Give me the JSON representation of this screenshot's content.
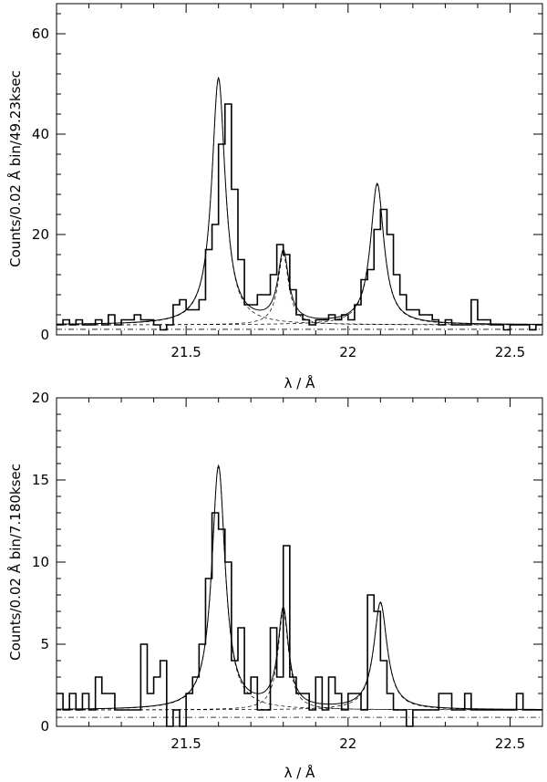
{
  "chart_data": [
    {
      "type": "line",
      "xlabel": "λ / Å",
      "ylabel": "Counts/0.02 Å bin/49.23ksec",
      "xlim": [
        21.1,
        22.6
      ],
      "ylim": [
        0,
        66
      ],
      "xticks": [
        21.5,
        22,
        22.5
      ],
      "xtick_labels": [
        "21.5",
        "22",
        "22.5"
      ],
      "yticks": [
        0,
        20,
        40,
        60
      ],
      "ytick_labels": [
        "0",
        "20",
        "40",
        "60"
      ],
      "grid": false,
      "histogram": {
        "bin_edges": [
          21.1,
          21.12,
          21.14,
          21.16,
          21.18,
          21.2,
          21.22,
          21.24,
          21.26,
          21.28,
          21.3,
          21.32,
          21.34,
          21.36,
          21.38,
          21.4,
          21.42,
          21.44,
          21.46,
          21.48,
          21.5,
          21.52,
          21.54,
          21.56,
          21.58,
          21.6,
          21.62,
          21.64,
          21.66,
          21.68,
          21.7,
          21.72,
          21.74,
          21.76,
          21.78,
          21.8,
          21.82,
          21.84,
          21.86,
          21.88,
          21.9,
          21.92,
          21.94,
          21.96,
          21.98,
          22.0,
          22.02,
          22.04,
          22.06,
          22.08,
          22.1,
          22.12,
          22.14,
          22.16,
          22.18,
          22.2,
          22.22,
          22.24,
          22.26,
          22.28,
          22.3,
          22.32,
          22.34,
          22.36,
          22.38,
          22.4,
          22.42,
          22.44,
          22.46,
          22.48,
          22.5,
          22.52,
          22.54,
          22.56,
          22.58,
          22.6
        ],
        "counts": [
          2,
          3,
          2,
          3,
          2,
          2,
          3,
          2,
          4,
          2,
          3,
          3,
          4,
          3,
          3,
          2,
          1,
          2,
          6,
          7,
          5,
          5,
          7,
          17,
          22,
          38,
          46,
          29,
          15,
          6,
          6,
          8,
          8,
          12,
          18,
          16,
          9,
          4,
          3,
          2,
          3,
          3,
          4,
          3,
          4,
          3,
          6,
          11,
          13,
          21,
          25,
          20,
          12,
          8,
          5,
          5,
          4,
          4,
          3,
          2,
          3,
          2,
          2,
          2,
          7,
          3,
          3,
          2,
          2,
          1,
          2,
          2,
          2,
          1,
          2
        ]
      },
      "model": {
        "continuum": 2.0,
        "lines": [
          {
            "center": 21.6,
            "amplitude": 49,
            "width": 0.025
          },
          {
            "center": 21.8,
            "amplitude": 14,
            "width": 0.02
          },
          {
            "center": 22.09,
            "amplitude": 28,
            "width": 0.025
          }
        ]
      }
    },
    {
      "type": "line",
      "xlabel": "λ / Å",
      "ylabel": "Counts/0.02 Å bin/7.180ksec",
      "xlim": [
        21.1,
        22.6
      ],
      "ylim": [
        0,
        20
      ],
      "xticks": [
        21.5,
        22,
        22.5
      ],
      "xtick_labels": [
        "21.5",
        "22",
        "22.5"
      ],
      "yticks": [
        0,
        5,
        10,
        15,
        20
      ],
      "ytick_labels": [
        "0",
        "5",
        "10",
        "15",
        "20"
      ],
      "grid": false,
      "histogram": {
        "bin_edges": [
          21.1,
          21.12,
          21.14,
          21.16,
          21.18,
          21.2,
          21.22,
          21.24,
          21.26,
          21.28,
          21.3,
          21.32,
          21.34,
          21.36,
          21.38,
          21.4,
          21.42,
          21.44,
          21.46,
          21.48,
          21.5,
          21.52,
          21.54,
          21.56,
          21.58,
          21.6,
          21.62,
          21.64,
          21.66,
          21.68,
          21.7,
          21.72,
          21.74,
          21.76,
          21.78,
          21.8,
          21.82,
          21.84,
          21.86,
          21.88,
          21.9,
          21.92,
          21.94,
          21.96,
          21.98,
          22.0,
          22.02,
          22.04,
          22.06,
          22.08,
          22.1,
          22.12,
          22.14,
          22.16,
          22.18,
          22.2,
          22.22,
          22.24,
          22.26,
          22.28,
          22.3,
          22.32,
          22.34,
          22.36,
          22.38,
          22.4,
          22.42,
          22.44,
          22.46,
          22.48,
          22.5,
          22.52,
          22.54,
          22.56,
          22.58,
          22.6
        ],
        "counts": [
          2,
          1,
          2,
          1,
          2,
          1,
          3,
          2,
          2,
          1,
          1,
          1,
          1,
          5,
          2,
          3,
          4,
          0,
          1,
          0,
          2,
          3,
          5,
          9,
          13,
          12,
          10,
          4,
          6,
          2,
          3,
          1,
          1,
          6,
          3,
          11,
          3,
          2,
          2,
          1,
          3,
          1,
          3,
          2,
          1,
          2,
          2,
          1,
          8,
          7,
          4,
          2,
          1,
          1,
          0,
          1,
          1,
          1,
          1,
          2,
          2,
          1,
          1,
          2,
          1,
          1,
          1,
          1,
          1,
          1,
          1,
          2,
          1,
          1,
          1
        ]
      },
      "model": {
        "continuum": 1.0,
        "lines": [
          {
            "center": 21.6,
            "amplitude": 14.8,
            "width": 0.025
          },
          {
            "center": 21.8,
            "amplitude": 6.0,
            "width": 0.02
          },
          {
            "center": 22.1,
            "amplitude": 6.5,
            "width": 0.025
          }
        ]
      }
    }
  ]
}
